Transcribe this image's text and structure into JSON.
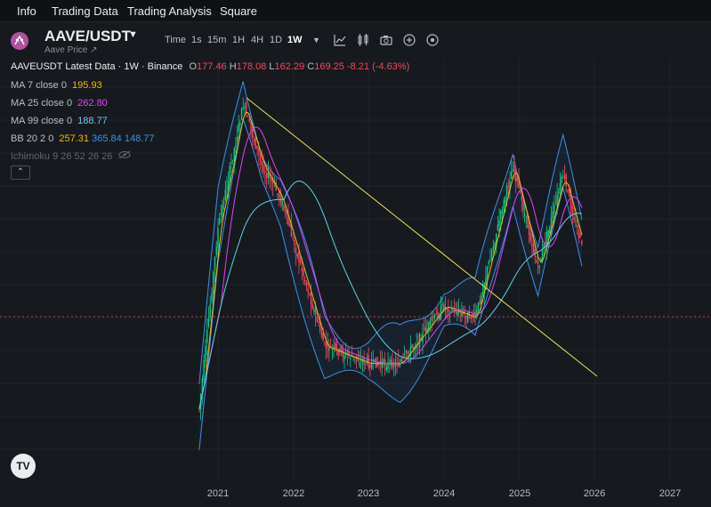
{
  "nav": {
    "tabs": [
      "Info",
      "Trading Data",
      "Trading Analysis",
      "Square"
    ]
  },
  "header": {
    "pair": "AAVE/USDT",
    "subtitle": "Aave Price ↗",
    "timeframes": [
      "Time",
      "1s",
      "15m",
      "1H",
      "4H",
      "1D",
      "1W"
    ],
    "active_timeframe": "1W"
  },
  "legend": {
    "title": "AAVEUSDT Latest Data · 1W · Binance",
    "o_label": "O",
    "o": "177.46",
    "h_label": "H",
    "h": "178.08",
    "l_label": "L",
    "l": "162.29",
    "c_label": "C",
    "c": "169.25",
    "change": "-8.21 (-4.63%)",
    "ma7_label": "MA 7 close 0",
    "ma7": "195.93",
    "ma25_label": "MA 25 close 0",
    "ma25": "262.80",
    "ma99_label": "MA 99 close 0",
    "ma99": "188.77",
    "bb_label": "BB 20 2 0",
    "bb_mid": "257.31",
    "bb_up": "365.84",
    "bb_low": "148.77",
    "ichimoku_label": "Ichimoku 9 26 52 26 26"
  },
  "chart_data": {
    "type": "candlestick",
    "x_axis_labels": [
      "2021",
      "2022",
      "2023",
      "2024",
      "2025",
      "2026",
      "2027"
    ],
    "price_series": [
      {
        "date": "2020-10",
        "close": 40
      },
      {
        "date": "2021-01",
        "close": 200
      },
      {
        "date": "2021-05",
        "close": 600
      },
      {
        "date": "2021-08",
        "close": 350
      },
      {
        "date": "2021-11",
        "close": 260
      },
      {
        "date": "2022-06",
        "close": 70
      },
      {
        "date": "2023-01",
        "close": 60
      },
      {
        "date": "2023-06",
        "close": 60
      },
      {
        "date": "2024-01",
        "close": 100
      },
      {
        "date": "2024-06",
        "close": 90
      },
      {
        "date": "2024-12",
        "close": 350
      },
      {
        "date": "2025-04",
        "close": 140
      },
      {
        "date": "2025-08",
        "close": 320
      },
      {
        "date": "2025-11",
        "close": 169.25
      }
    ],
    "last_price": 169.25,
    "colors": {
      "up": "#0ecb81",
      "down": "#f6465d",
      "ma7": "#f0b90b",
      "ma25": "#e040fb",
      "ma99": "#5ed1e8",
      "bb": "#3d8ee8",
      "trendline": "#f0e05a"
    }
  },
  "colors": {
    "background": "#161a1e",
    "accent": "#f0b90b",
    "down": "#f6465d",
    "up": "#0ecb81"
  }
}
